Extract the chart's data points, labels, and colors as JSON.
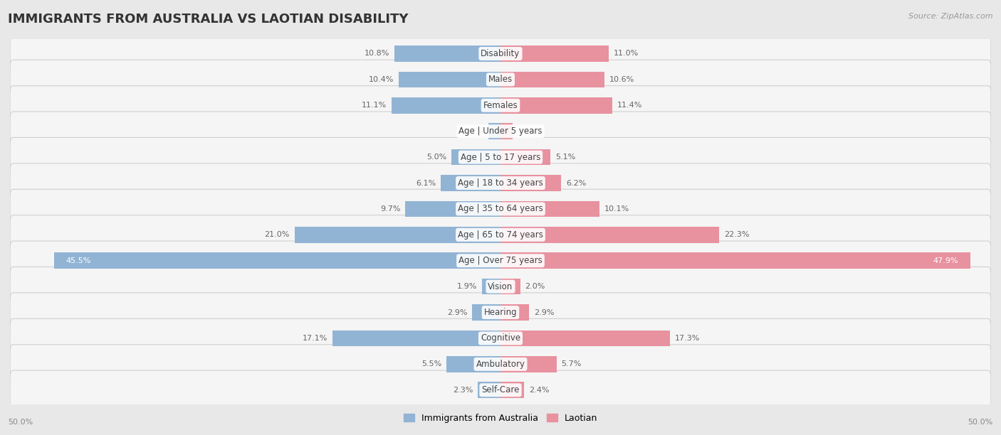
{
  "title": "IMMIGRANTS FROM AUSTRALIA VS LAOTIAN DISABILITY",
  "source": "Source: ZipAtlas.com",
  "categories": [
    "Disability",
    "Males",
    "Females",
    "Age | Under 5 years",
    "Age | 5 to 17 years",
    "Age | 18 to 34 years",
    "Age | 35 to 64 years",
    "Age | 65 to 74 years",
    "Age | Over 75 years",
    "Vision",
    "Hearing",
    "Cognitive",
    "Ambulatory",
    "Self-Care"
  ],
  "left_values": [
    10.8,
    10.4,
    11.1,
    1.2,
    5.0,
    6.1,
    9.7,
    21.0,
    45.5,
    1.9,
    2.9,
    17.1,
    5.5,
    2.3
  ],
  "right_values": [
    11.0,
    10.6,
    11.4,
    1.2,
    5.1,
    6.2,
    10.1,
    22.3,
    47.9,
    2.0,
    2.9,
    17.3,
    5.7,
    2.4
  ],
  "left_color": "#92b4d4",
  "right_color": "#e8919f",
  "left_label": "Immigrants from Australia",
  "right_label": "Laotian",
  "axis_max": 50.0,
  "bg_color": "#e8e8e8",
  "row_bg_color": "#f5f5f5",
  "row_border_color": "#d0d0d0",
  "title_fontsize": 13,
  "cat_fontsize": 8.5,
  "value_fontsize": 8,
  "source_fontsize": 8,
  "legend_fontsize": 9
}
